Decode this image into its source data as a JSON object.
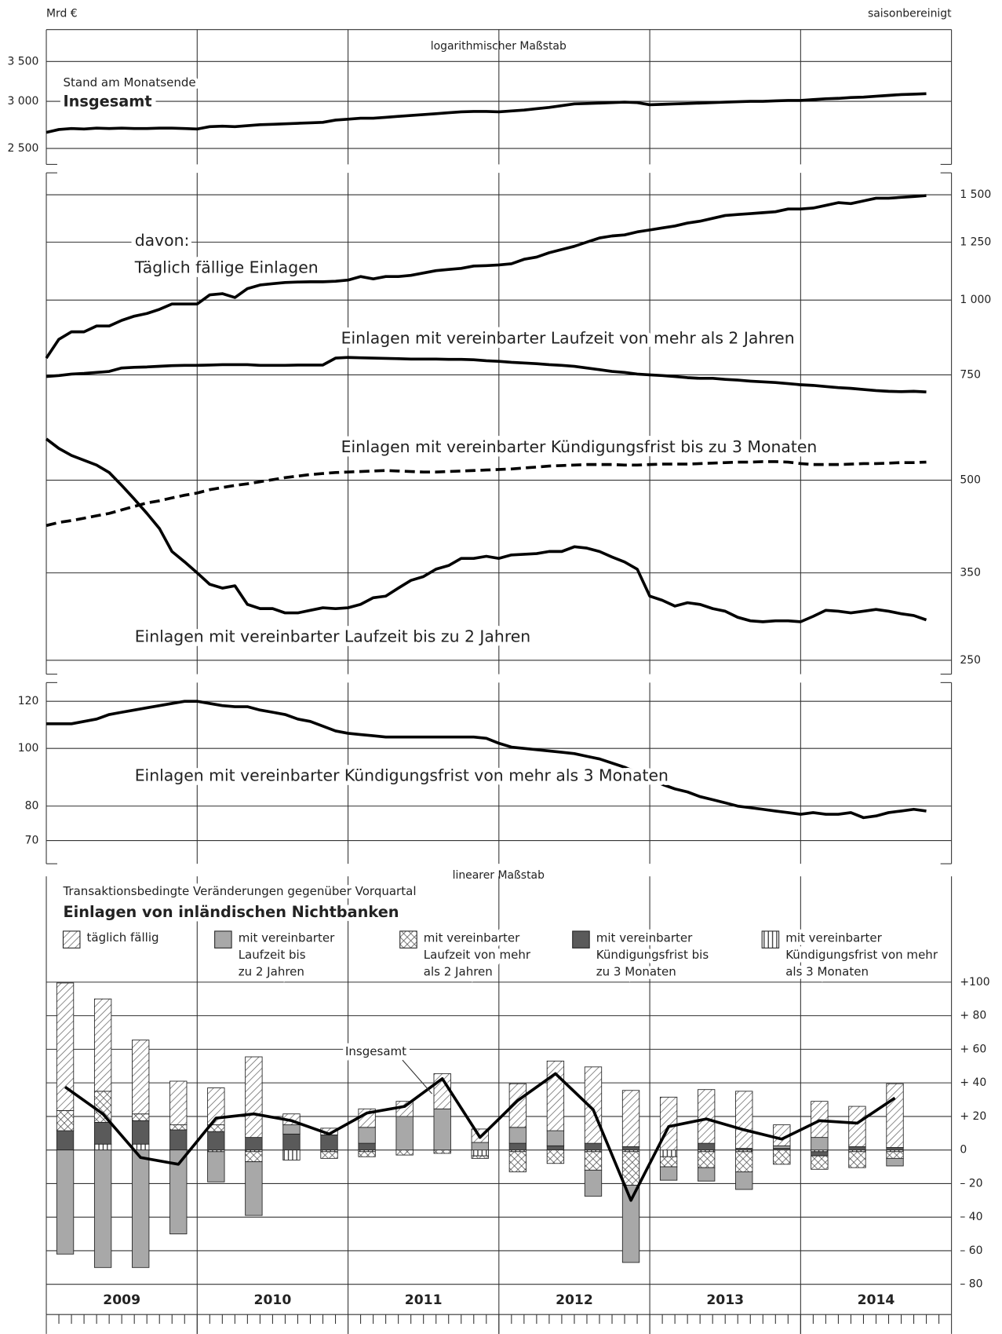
{
  "header": {
    "unit": "Mrd €",
    "note": "saisonbereinigt"
  },
  "chart_data": [
    {
      "type": "line",
      "scale_note": "logarithmischer Maßstab",
      "subtitle": "Stand am Monatsende",
      "log_scale": true,
      "grid": true,
      "y_axis_side": "left",
      "x": [
        2009,
        2009.083,
        2009.167,
        2009.25,
        2009.333,
        2009.417,
        2009.5,
        2009.583,
        2009.667,
        2009.75,
        2009.833,
        2009.917,
        2010,
        2010.083,
        2010.167,
        2010.25,
        2010.333,
        2010.417,
        2010.5,
        2010.583,
        2010.667,
        2010.75,
        2010.833,
        2010.917,
        2011,
        2011.083,
        2011.167,
        2011.25,
        2011.333,
        2011.417,
        2011.5,
        2011.583,
        2011.667,
        2011.75,
        2011.833,
        2011.917,
        2012,
        2012.083,
        2012.167,
        2012.25,
        2012.333,
        2012.417,
        2012.5,
        2012.583,
        2012.667,
        2012.75,
        2012.833,
        2012.917,
        2013,
        2013.083,
        2013.167,
        2013.25,
        2013.333,
        2013.417,
        2013.5,
        2013.583,
        2013.667,
        2013.75,
        2013.833,
        2013.917,
        2014,
        2014.083,
        2014.167,
        2014.25,
        2014.333,
        2014.417,
        2014.5,
        2014.583,
        2014.667,
        2014.75,
        2014.833
      ],
      "xlim": [
        2009,
        2015
      ],
      "ylim": [
        2350,
        3960
      ],
      "yticks": [
        {
          "value": 2500,
          "label": "2 500"
        },
        {
          "value": 3000,
          "label": "3 000"
        },
        {
          "value": 3500,
          "label": "3 500"
        }
      ],
      "series": [
        {
          "name": "Insgesamt",
          "color": "#000000",
          "values": [
            2660,
            2690,
            2700,
            2695,
            2705,
            2700,
            2705,
            2700,
            2700,
            2705,
            2705,
            2700,
            2695,
            2720,
            2725,
            2720,
            2730,
            2740,
            2745,
            2750,
            2755,
            2760,
            2765,
            2790,
            2800,
            2810,
            2810,
            2820,
            2830,
            2840,
            2850,
            2860,
            2870,
            2880,
            2885,
            2885,
            2880,
            2890,
            2900,
            2915,
            2930,
            2950,
            2970,
            2975,
            2980,
            2985,
            2990,
            2985,
            2960,
            2965,
            2970,
            2975,
            2980,
            2985,
            2990,
            2995,
            3000,
            3000,
            3005,
            3010,
            3010,
            3020,
            3030,
            3035,
            3045,
            3050,
            3060,
            3070,
            3080,
            3085,
            3090
          ]
        }
      ]
    },
    {
      "type": "line",
      "intro": "davon:",
      "log_scale": true,
      "grid": true,
      "y_axis_side": "right",
      "x": [
        2009,
        2009.083,
        2009.167,
        2009.25,
        2009.333,
        2009.417,
        2009.5,
        2009.583,
        2009.667,
        2009.75,
        2009.833,
        2009.917,
        2010,
        2010.083,
        2010.167,
        2010.25,
        2010.333,
        2010.417,
        2010.5,
        2010.583,
        2010.667,
        2010.75,
        2010.833,
        2010.917,
        2011,
        2011.083,
        2011.167,
        2011.25,
        2011.333,
        2011.417,
        2011.5,
        2011.583,
        2011.667,
        2011.75,
        2011.833,
        2011.917,
        2012,
        2012.083,
        2012.167,
        2012.25,
        2012.333,
        2012.417,
        2012.5,
        2012.583,
        2012.667,
        2012.75,
        2012.833,
        2012.917,
        2013,
        2013.083,
        2013.167,
        2013.25,
        2013.333,
        2013.417,
        2013.5,
        2013.583,
        2013.667,
        2013.75,
        2013.833,
        2013.917,
        2014,
        2014.083,
        2014.167,
        2014.25,
        2014.333,
        2014.417,
        2014.5,
        2014.583,
        2014.667,
        2014.75,
        2014.833
      ],
      "xlim": [
        2009,
        2015
      ],
      "ylim": [
        237,
        1632
      ],
      "yticks": [
        250,
        350,
        500,
        750,
        {
          "value": 1000,
          "label": "1 000"
        },
        {
          "value": 1250,
          "label": "1 250"
        },
        {
          "value": 1500,
          "label": "1 500"
        }
      ],
      "series": [
        {
          "name": "Täglich fällige Einlagen",
          "color": "#000000",
          "line_style": "solid",
          "values": [
            800,
            860,
            885,
            885,
            905,
            905,
            925,
            940,
            950,
            965,
            985,
            985,
            985,
            1020,
            1025,
            1010,
            1045,
            1060,
            1065,
            1070,
            1072,
            1073,
            1073,
            1075,
            1080,
            1095,
            1085,
            1095,
            1095,
            1100,
            1110,
            1120,
            1125,
            1130,
            1140,
            1142,
            1145,
            1150,
            1170,
            1180,
            1200,
            1215,
            1230,
            1250,
            1270,
            1280,
            1285,
            1300,
            1310,
            1320,
            1330,
            1345,
            1355,
            1370,
            1385,
            1390,
            1395,
            1400,
            1405,
            1420,
            1420,
            1425,
            1440,
            1455,
            1450,
            1465,
            1480,
            1480,
            1485,
            1490,
            1495
          ]
        },
        {
          "name": "Einlagen mit vereinbarter Laufzeit von mehr als 2 Jahren",
          "color": "#000000",
          "line_style": "solid",
          "values": [
            745,
            748,
            752,
            754,
            757,
            760,
            770,
            772,
            773,
            775,
            777,
            778,
            778,
            779,
            780,
            780,
            780,
            778,
            778,
            778,
            779,
            779,
            779,
            800,
            802,
            801,
            800,
            799,
            798,
            797,
            797,
            797,
            796,
            796,
            795,
            792,
            790,
            787,
            785,
            783,
            780,
            778,
            775,
            770,
            765,
            760,
            757,
            752,
            750,
            748,
            745,
            742,
            740,
            740,
            737,
            735,
            732,
            730,
            728,
            725,
            722,
            720,
            717,
            714,
            712,
            709,
            706,
            704,
            703,
            704,
            702
          ]
        },
        {
          "name": "Einlagen mit vereinbarter Kündigungsfrist bis zu 3 Monaten",
          "color": "#000000",
          "line_style": "dashed",
          "values": [
            420,
            425,
            428,
            432,
            436,
            440,
            446,
            452,
            458,
            462,
            467,
            472,
            476,
            482,
            486,
            490,
            493,
            497,
            501,
            505,
            508,
            511,
            513,
            515,
            516,
            517,
            518,
            519,
            518,
            517,
            516,
            516,
            517,
            518,
            519,
            520,
            521,
            522,
            524,
            526,
            528,
            529,
            530,
            531,
            531,
            531,
            530,
            530,
            531,
            532,
            532,
            532,
            533,
            534,
            535,
            536,
            536,
            537,
            537,
            536,
            533,
            531,
            531,
            531,
            532,
            533,
            533,
            534,
            535,
            535,
            536
          ]
        },
        {
          "name": "Einlagen mit vereinbarter Laufzeit bis zu 2 Jahren",
          "color": "#000000",
          "line_style": "solid",
          "values": [
            586,
            565,
            550,
            540,
            530,
            515,
            490,
            465,
            440,
            415,
            380,
            365,
            350,
            335,
            330,
            333,
            310,
            305,
            305,
            300,
            300,
            303,
            306,
            305,
            306,
            310,
            318,
            320,
            330,
            340,
            345,
            355,
            360,
            370,
            370,
            373,
            370,
            375,
            376,
            377,
            380,
            380,
            387,
            385,
            380,
            372,
            365,
            355,
            320,
            315,
            308,
            312,
            310,
            305,
            302,
            295,
            291,
            290,
            291,
            291,
            290,
            296,
            303,
            302,
            300,
            302,
            304,
            302,
            299,
            297,
            292
          ]
        }
      ]
    },
    {
      "type": "line",
      "log_scale": true,
      "grid": true,
      "y_axis_side": "left",
      "x": [
        2009,
        2009.083,
        2009.167,
        2009.25,
        2009.333,
        2009.417,
        2009.5,
        2009.583,
        2009.667,
        2009.75,
        2009.833,
        2009.917,
        2010,
        2010.083,
        2010.167,
        2010.25,
        2010.333,
        2010.417,
        2010.5,
        2010.583,
        2010.667,
        2010.75,
        2010.833,
        2010.917,
        2011,
        2011.083,
        2011.167,
        2011.25,
        2011.333,
        2011.417,
        2011.5,
        2011.583,
        2011.667,
        2011.75,
        2011.833,
        2011.917,
        2012,
        2012.083,
        2012.167,
        2012.25,
        2012.333,
        2012.417,
        2012.5,
        2012.583,
        2012.667,
        2012.75,
        2012.833,
        2012.917,
        2013,
        2013.083,
        2013.167,
        2013.25,
        2013.333,
        2013.417,
        2013.5,
        2013.583,
        2013.667,
        2013.75,
        2013.833,
        2013.917,
        2014,
        2014.083,
        2014.167,
        2014.25,
        2014.333,
        2014.417,
        2014.5,
        2014.583,
        2014.667,
        2014.75,
        2014.833
      ],
      "xlim": [
        2009,
        2015
      ],
      "ylim": [
        64,
        129
      ],
      "yticks": [
        70,
        80,
        100,
        120
      ],
      "series": [
        {
          "name": "Einlagen mit vereinbarter Kündigungsfrist von mehr als 3 Monaten",
          "color": "#000000",
          "line_style": "solid",
          "values": [
            110,
            110,
            110,
            111,
            112,
            114,
            115,
            116,
            117,
            118,
            119,
            120,
            120,
            119,
            118,
            117.5,
            117.5,
            116,
            115,
            114,
            112,
            111,
            109,
            107,
            106,
            105.5,
            105,
            104.5,
            104.5,
            104.5,
            104.5,
            104.5,
            104.5,
            104.5,
            104.5,
            104,
            102,
            100.5,
            100,
            99.5,
            99,
            98.5,
            98,
            97,
            96,
            94.5,
            93,
            91,
            89,
            87,
            85.5,
            84.5,
            83,
            82,
            81,
            80,
            79.5,
            79,
            78.5,
            78,
            77.5,
            78,
            77.5,
            77.5,
            78,
            76.5,
            77,
            78,
            78.5,
            79,
            78.5
          ]
        }
      ]
    },
    {
      "type": "stacked_bar",
      "scale_note": "linearer Maßstab",
      "subtitle": "Transaktionsbedingte Veränderungen gegenüber Vorquartal",
      "title": "Einlagen von inländischen Nichtbanken",
      "grid": true,
      "y_axis_side": "right",
      "x": [
        2009.125,
        2009.375,
        2009.625,
        2009.875,
        2010.125,
        2010.375,
        2010.625,
        2010.875,
        2011.125,
        2011.375,
        2011.625,
        2011.875,
        2012.125,
        2012.375,
        2012.625,
        2012.875,
        2013.125,
        2013.375,
        2013.625,
        2013.875,
        2014.125,
        2014.375,
        2014.625
      ],
      "xlim": [
        2009,
        2015
      ],
      "xticks": [
        {
          "value": 2009.5,
          "label": "2009"
        },
        {
          "value": 2010.5,
          "label": "2010"
        },
        {
          "value": 2011.5,
          "label": "2011"
        },
        {
          "value": 2012.5,
          "label": "2012"
        },
        {
          "value": 2013.5,
          "label": "2013"
        },
        {
          "value": 2014.5,
          "label": "2014"
        }
      ],
      "ylim": [
        -98,
        163
      ],
      "yticks": [
        {
          "value": -80,
          "label": "– 80"
        },
        {
          "value": -60,
          "label": "– 60"
        },
        {
          "value": -40,
          "label": "– 40"
        },
        {
          "value": -20,
          "label": "– 20"
        },
        0,
        {
          "value": 20,
          "label": "+ 20"
        },
        {
          "value": 40,
          "label": "+ 40"
        },
        {
          "value": 60,
          "label": "+ 60"
        },
        {
          "value": 80,
          "label": "+ 80"
        },
        {
          "value": 100,
          "label": "+100"
        }
      ],
      "series": [
        {
          "name": "täglich fällig",
          "values": [
            76,
            55,
            44,
            26,
            22,
            48,
            6.5,
            4,
            11,
            9,
            21,
            8,
            26,
            41.5,
            45.5,
            33.5,
            31.5,
            32,
            34,
            12.5,
            21.5,
            24,
            38
          ]
        },
        {
          "name": "mit vereinbarter\nLaufzeit bis\nzu 2 Jahren",
          "values": [
            -62,
            -70,
            -70,
            -50,
            -18,
            -32,
            5.5,
            0,
            9.5,
            20,
            24.5,
            4.5,
            9.5,
            9,
            -15.5,
            -46,
            -8,
            -8,
            -10.5,
            1.5,
            7.5,
            0,
            -4.5
          ]
        },
        {
          "name": "mit vereinbarter\nLaufzeit von mehr\nals 2 Jahren",
          "values": [
            12,
            18.5,
            4,
            3,
            4,
            -6,
            0,
            -4,
            -3,
            -3,
            -2,
            -1.5,
            -12,
            -8,
            -11,
            -20,
            -6,
            -9.5,
            -12,
            -8.5,
            -8,
            -9.5,
            -4
          ]
        },
        {
          "name": "mit vereinbarter\nKündigungsfrist bis\nzu 3 Monaten",
          "values": [
            11.5,
            13,
            14,
            12,
            11,
            7.5,
            9.5,
            9,
            4,
            0,
            0,
            0,
            4,
            2.5,
            4,
            2,
            0,
            4,
            1,
            1,
            -2.5,
            2,
            1.5
          ]
        },
        {
          "name": "mit vereinbarter\nKündigungsfrist von mehr\nals 3 Monaten",
          "values": [
            0,
            3.5,
            3.5,
            0,
            -1,
            -1,
            -6,
            -1,
            -1,
            0,
            0,
            -3.5,
            -1,
            0,
            -1,
            -1,
            -4,
            -1,
            -1,
            0,
            -1,
            -1,
            -1
          ]
        },
        {
          "name": "Insgesamt",
          "type": "line",
          "color": "#000000",
          "values": [
            37.5,
            21.5,
            -4.5,
            -8.5,
            19,
            21.5,
            17.5,
            9.5,
            22,
            26,
            42.5,
            7.5,
            29.5,
            45.5,
            24,
            -30,
            14,
            18.5,
            12,
            6.5,
            17.5,
            16,
            31
          ]
        }
      ]
    }
  ]
}
